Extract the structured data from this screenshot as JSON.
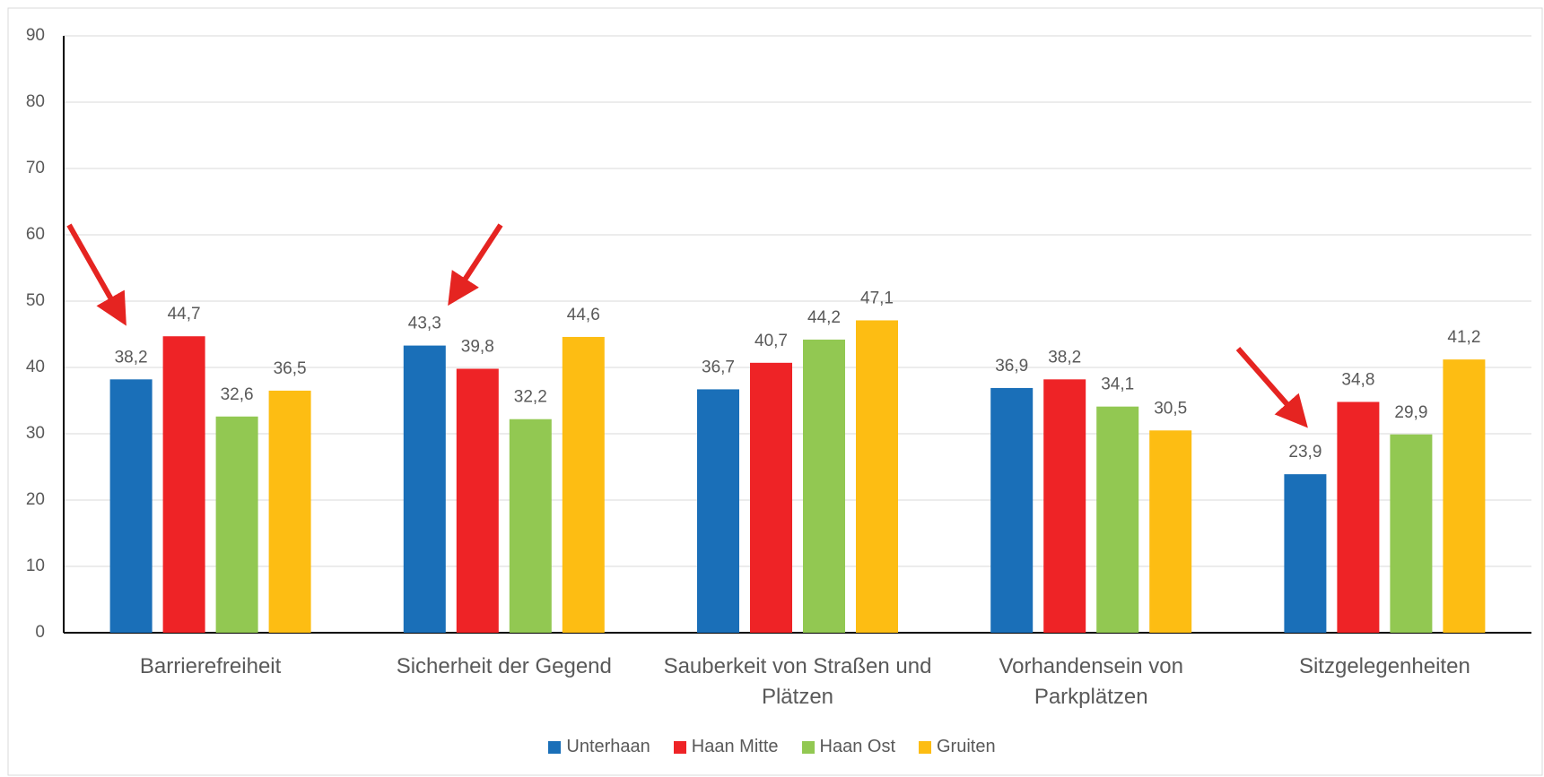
{
  "chart_data": {
    "type": "bar",
    "categories": [
      "Barrierefreiheit",
      "Sicherheit der Gegend",
      "Sauberkeit von Straßen und Plätzen",
      "Vorhandensein von Parkplätzen",
      "Sitzgelegenheiten"
    ],
    "series": [
      {
        "name": "Unterhaan",
        "color": "#1a6fb8",
        "values": [
          38.2,
          43.3,
          36.7,
          36.9,
          23.9
        ],
        "value_labels": [
          "38,2",
          "43,3",
          "36,7",
          "36,9",
          "23,9"
        ]
      },
      {
        "name": "Haan Mitte",
        "color": "#ee2326",
        "values": [
          44.7,
          39.8,
          40.7,
          38.2,
          34.8
        ],
        "value_labels": [
          "44,7",
          "39,8",
          "40,7",
          "38,2",
          "34,8"
        ]
      },
      {
        "name": "Haan Ost",
        "color": "#92c852",
        "values": [
          32.6,
          32.2,
          44.2,
          34.1,
          29.9
        ],
        "value_labels": [
          "32,6",
          "32,2",
          "44,2",
          "34,1",
          "29,9"
        ]
      },
      {
        "name": "Gruiten",
        "color": "#fdbd13",
        "values": [
          36.5,
          44.6,
          47.1,
          30.5,
          41.2
        ],
        "value_labels": [
          "36,5",
          "44,6",
          "47,1",
          "30,5",
          "41,2"
        ]
      }
    ],
    "ylim": [
      0,
      90
    ],
    "yticks": [
      0,
      10,
      20,
      30,
      40,
      50,
      60,
      70,
      80,
      90
    ],
    "grid": true,
    "legend": "bottom"
  }
}
